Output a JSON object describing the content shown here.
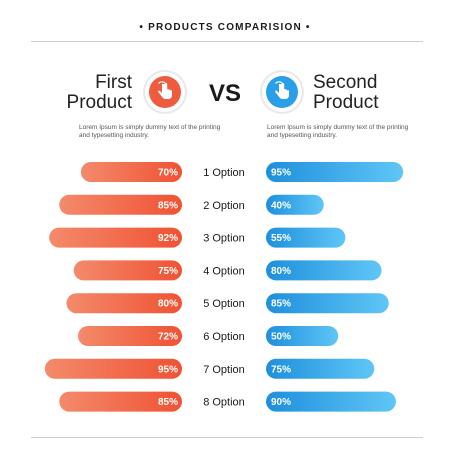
{
  "header": {
    "title": "• PRODUCTS COMPARISION •"
  },
  "products": {
    "first": {
      "line1": "First",
      "line2": "Product",
      "icon": "hand-pointer-icon",
      "color": "#ef5b3e",
      "description": "Lorem Ipsum is simply dummy text of the printing and typesetting industry."
    },
    "vs": "VS",
    "second": {
      "line1": "Second",
      "line2": "Product",
      "icon": "hand-pointer-icon",
      "color": "#2a9ee6",
      "description": "Lorem Ipsum is simply dummy text of the printing and typesetting industry."
    }
  },
  "chart_data": {
    "type": "bar",
    "categories": [
      "1 Option",
      "2 Option",
      "3 Option",
      "4 Option",
      "5 Option",
      "6 Option",
      "7 Option",
      "8 Option"
    ],
    "series": [
      {
        "values": [
          70,
          85,
          92,
          75,
          80,
          72,
          95,
          85
        ],
        "color_start": "#f48a6c",
        "color_end": "#ef5233"
      },
      {
        "values": [
          95,
          40,
          55,
          80,
          85,
          50,
          75,
          90
        ],
        "color_start": "#1e8fdc",
        "color_end": "#5fc6f6"
      }
    ],
    "value_suffix": "%",
    "ylim": [
      0,
      100
    ]
  }
}
